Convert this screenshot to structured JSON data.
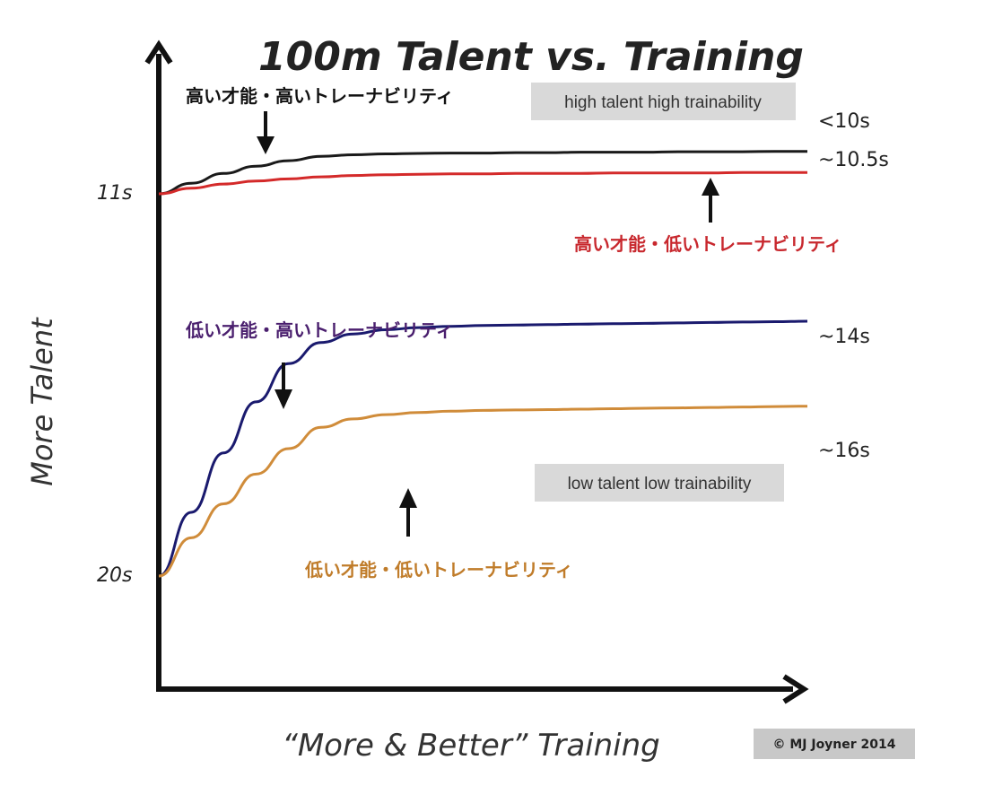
{
  "chart_data": {
    "type": "line",
    "title": "100m Talent vs. Training",
    "xlabel": "“More & Better” Training",
    "ylabel": "More Talent",
    "y_ticks": [
      "11s",
      "20s"
    ],
    "x": [
      0,
      0.5,
      1,
      1.5,
      2,
      2.5,
      3,
      3.5,
      4,
      4.5,
      5,
      5.5,
      6,
      6.5,
      7,
      7.5,
      8,
      8.5,
      9,
      9.5,
      10
    ],
    "series": [
      {
        "name": "high talent high trainability",
        "label": "高い才能・高いトレーナビリティ",
        "end_label": "<10s",
        "color": "#1a1a1a",
        "values": [
          11.0,
          10.75,
          10.52,
          10.35,
          10.22,
          10.12,
          10.08,
          10.06,
          10.05,
          10.04,
          10.04,
          10.03,
          10.03,
          10.02,
          10.02,
          10.02,
          10.01,
          10.01,
          10.01,
          10.0,
          10.0
        ]
      },
      {
        "name": "",
        "label": "高い才能・低いトレーナビリティ",
        "end_label": "~10.5s",
        "color": "#d42a2a",
        "values": [
          11.0,
          10.87,
          10.77,
          10.7,
          10.65,
          10.6,
          10.57,
          10.55,
          10.54,
          10.53,
          10.53,
          10.52,
          10.52,
          10.52,
          10.51,
          10.51,
          10.51,
          10.51,
          10.5,
          10.5,
          10.5
        ]
      },
      {
        "name": "",
        "label": "低い才能・高いトレーナビリティ",
        "end_label": "~14s",
        "color": "#1a1a6e",
        "values": [
          20.0,
          18.5,
          17.1,
          15.9,
          15.0,
          14.5,
          14.3,
          14.2,
          14.15,
          14.12,
          14.1,
          14.09,
          14.08,
          14.07,
          14.06,
          14.05,
          14.04,
          14.03,
          14.02,
          14.01,
          14.0
        ]
      },
      {
        "name": "low talent low trainability",
        "label": "低い才能・低いトレーナビリティ",
        "end_label": "~16s",
        "color": "#d08c3a",
        "values": [
          20.0,
          19.1,
          18.3,
          17.6,
          17.0,
          16.5,
          16.3,
          16.2,
          16.15,
          16.12,
          16.1,
          16.09,
          16.08,
          16.07,
          16.06,
          16.05,
          16.04,
          16.03,
          16.02,
          16.01,
          16.0
        ]
      }
    ],
    "label_colors": {
      "high_high": "#111111",
      "high_low": "#c8282e",
      "low_high": "#4a1f6e",
      "low_low": "#c07c2a"
    },
    "grid": false,
    "legend": "none"
  },
  "annotations": {
    "box_high": "high talent high trainability",
    "box_low": "low talent low trainability",
    "copyright": "© MJ Joyner 2014"
  }
}
